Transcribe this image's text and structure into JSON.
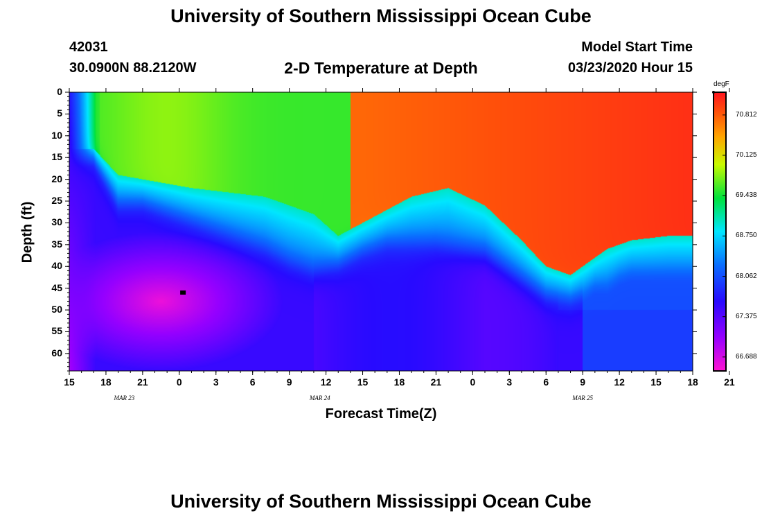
{
  "header": {
    "title": "University of Southern Mississippi Ocean Cube",
    "footer_title": "University of Southern Mississippi Ocean Cube",
    "station_id": "42031",
    "coordinates": "30.0900N 88.2120W",
    "model_start_label": "Model Start Time",
    "model_start_value": "03/23/2020 Hour 15"
  },
  "chart_data": {
    "type": "heatmap",
    "title": "2-D Temperature at Depth",
    "xlabel": "Forecast Time(Z)",
    "ylabel": "Depth (ft)",
    "x_hours_from_start": [
      0,
      51
    ],
    "ylim": [
      0,
      64
    ],
    "y_ticks": [
      0,
      5,
      10,
      15,
      20,
      25,
      30,
      35,
      40,
      45,
      50,
      55,
      60
    ],
    "x_tick_labels": [
      "15",
      "18",
      "21",
      "0",
      "3",
      "6",
      "9",
      "12",
      "15",
      "18",
      "21",
      "0",
      "3",
      "6",
      "9",
      "12",
      "15",
      "18",
      "21"
    ],
    "date_labels": [
      {
        "text": "MAR 23",
        "hour": 4.5
      },
      {
        "text": "MAR 24",
        "hour": 20.5
      },
      {
        "text": "MAR 25",
        "hour": 42
      }
    ],
    "colorbar": {
      "unit": "degF",
      "min": 66.45,
      "max": 71.2,
      "labels": [
        "70.812",
        "70.125",
        "69.438",
        "68.750",
        "68.062",
        "67.375",
        "66.688"
      ],
      "values": [
        70.812,
        70.125,
        69.438,
        68.75,
        68.062,
        67.375,
        66.688
      ]
    },
    "thermocline_depth_ft": {
      "hours": [
        0,
        2,
        3,
        4,
        5,
        6,
        8,
        12,
        16,
        18,
        20,
        22,
        24,
        26,
        30,
        34,
        37,
        38,
        39,
        41,
        42,
        43,
        44,
        45,
        46,
        48,
        51
      ],
      "depth": [
        17,
        17,
        22,
        27,
        27,
        27,
        29,
        33,
        37,
        40,
        42,
        41,
        38,
        36,
        36,
        38,
        44,
        46,
        48,
        49,
        48,
        46,
        46,
        44,
        43,
        43,
        43
      ]
    },
    "surface_layer_depth_ft": {
      "hours": [
        0,
        2,
        4,
        6,
        10,
        16,
        20,
        22,
        24,
        28,
        31,
        34,
        37,
        39,
        41,
        42,
        44,
        46,
        49,
        51
      ],
      "depth": [
        13,
        13,
        19,
        20,
        22,
        24,
        28,
        33,
        30,
        24,
        22,
        26,
        34,
        40,
        42,
        40,
        36,
        34,
        33,
        33
      ]
    },
    "marker": {
      "hour": 9.3,
      "depth_ft": 46
    }
  }
}
